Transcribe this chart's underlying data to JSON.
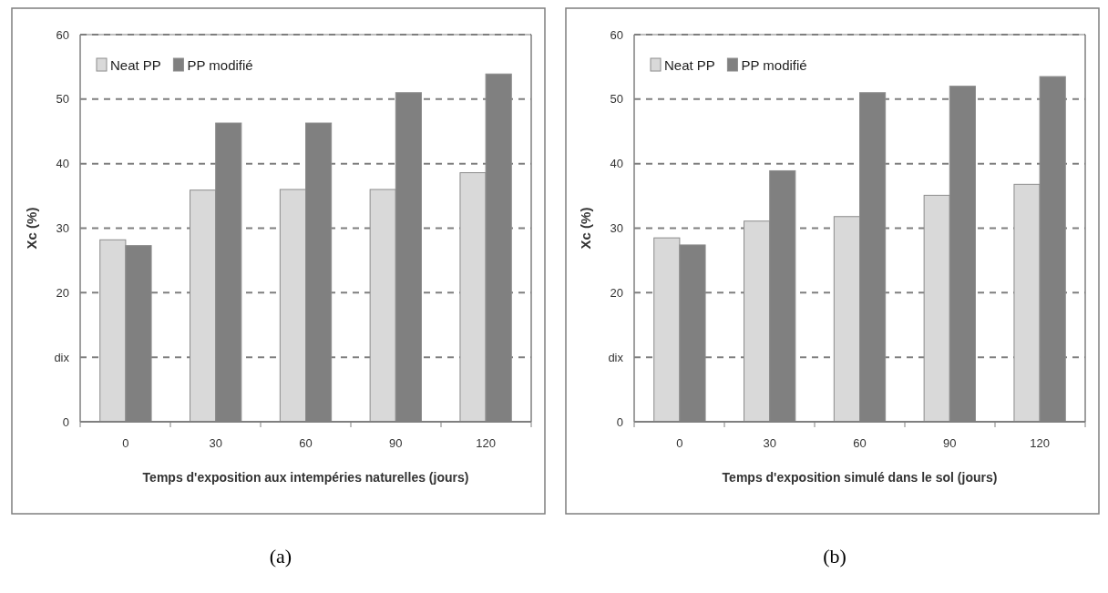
{
  "chart_data": [
    {
      "type": "bar",
      "ylabel": "Xc (%)",
      "xlabel": "Temps d'exposition aux intempéries naturelles (jours)",
      "categories": [
        "0",
        "30",
        "60",
        "90",
        "120"
      ],
      "series": [
        {
          "name": "Neat PP",
          "color": "#d9d9d9",
          "values": [
            28.2,
            35.9,
            36,
            36,
            38.6
          ]
        },
        {
          "name": "PP modifié",
          "color": "#808080",
          "values": [
            27.3,
            46.3,
            46.3,
            51,
            53.9
          ]
        }
      ],
      "ylim": [
        0,
        60
      ],
      "yticks": [
        0,
        {
          "value": 10,
          "label": "dix"
        },
        20,
        30,
        40,
        50,
        60
      ],
      "grid": "y",
      "legend": "top left",
      "annotations": [
        "(a)"
      ]
    },
    {
      "type": "bar",
      "ylabel": "Xc (%)",
      "xlabel": "Temps d'exposition simulé dans le sol (jours)",
      "categories": [
        "0",
        "30",
        "60",
        "90",
        "120"
      ],
      "series": [
        {
          "name": "Neat PP",
          "color": "#d9d9d9",
          "values": [
            28.5,
            31.1,
            31.8,
            35.1,
            36.8
          ]
        },
        {
          "name": "PP modifié",
          "color": "#808080",
          "values": [
            27.4,
            38.9,
            51,
            52,
            53.5
          ]
        }
      ],
      "ylim": [
        0,
        60
      ],
      "yticks": [
        0,
        {
          "value": 10,
          "label": "dix"
        },
        20,
        30,
        40,
        50,
        60
      ],
      "grid": "y",
      "legend": "top left",
      "annotations": [
        "(b)"
      ]
    }
  ]
}
